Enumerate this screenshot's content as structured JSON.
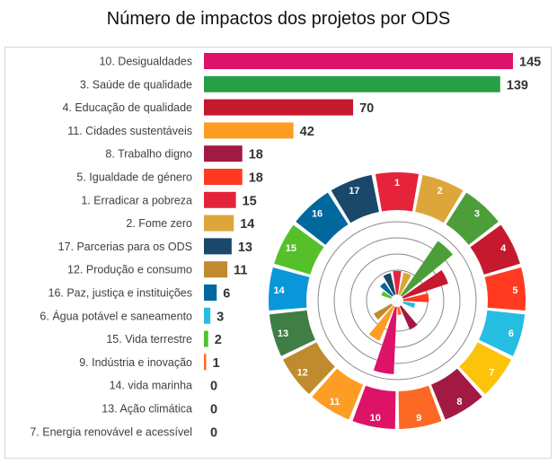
{
  "chart_data": {
    "type": "bar",
    "orientation": "horizontal",
    "title": "Número de impactos dos projetos por ODS",
    "xlim": [
      0,
      145
    ],
    "grid": false,
    "legend": "none",
    "categories": [
      "10. Desigualdades",
      "3. Saúde de qualidade",
      "4. Educação de qualidade",
      "11. Cidades sustentáveis",
      "8. Trabalho digno",
      "5. Igualdade de género",
      "1. Erradicar a pobreza",
      "2. Fome zero",
      "17. Parcerias para os ODS",
      "12. Produção e consumo",
      "16. Paz, justiça e instituições",
      "6. Água potável e saneamento",
      "15. Vida terrestre",
      "9. Indústria e inovação",
      "14. vida marinha",
      "13. Ação climática",
      "7. Energia renovável e acessível"
    ],
    "values": [
      145,
      139,
      70,
      42,
      18,
      18,
      15,
      14,
      13,
      11,
      6,
      3,
      2,
      1,
      0,
      0,
      0
    ],
    "colors": [
      "#dd1367",
      "#26a047",
      "#c5192d",
      "#fd9d24",
      "#a21942",
      "#ff3a21",
      "#e5243b",
      "#dda63a",
      "#19486a",
      "#bf8b2e",
      "#00689d",
      "#26bde2",
      "#56c02b",
      "#fd6925",
      "#0a97d9",
      "#3f7e44",
      "#fcc30b"
    ]
  },
  "sdg_wheel": {
    "numbers": [
      "1",
      "2",
      "3",
      "4",
      "5",
      "6",
      "7",
      "8",
      "9",
      "10",
      "11",
      "12",
      "13",
      "14",
      "15",
      "16",
      "17"
    ],
    "colors": [
      "#e5243b",
      "#dda63a",
      "#4c9f38",
      "#c5192d",
      "#ff3a21",
      "#26bde2",
      "#fcc30b",
      "#a21942",
      "#fd6925",
      "#dd1367",
      "#fd9d24",
      "#bf8b2e",
      "#3f7e44",
      "#0a97d9",
      "#56c02b",
      "#00689d",
      "#19486a"
    ],
    "impacts": [
      15,
      14,
      139,
      70,
      18,
      3,
      0,
      18,
      1,
      145,
      42,
      11,
      0,
      0,
      2,
      6,
      13
    ]
  }
}
